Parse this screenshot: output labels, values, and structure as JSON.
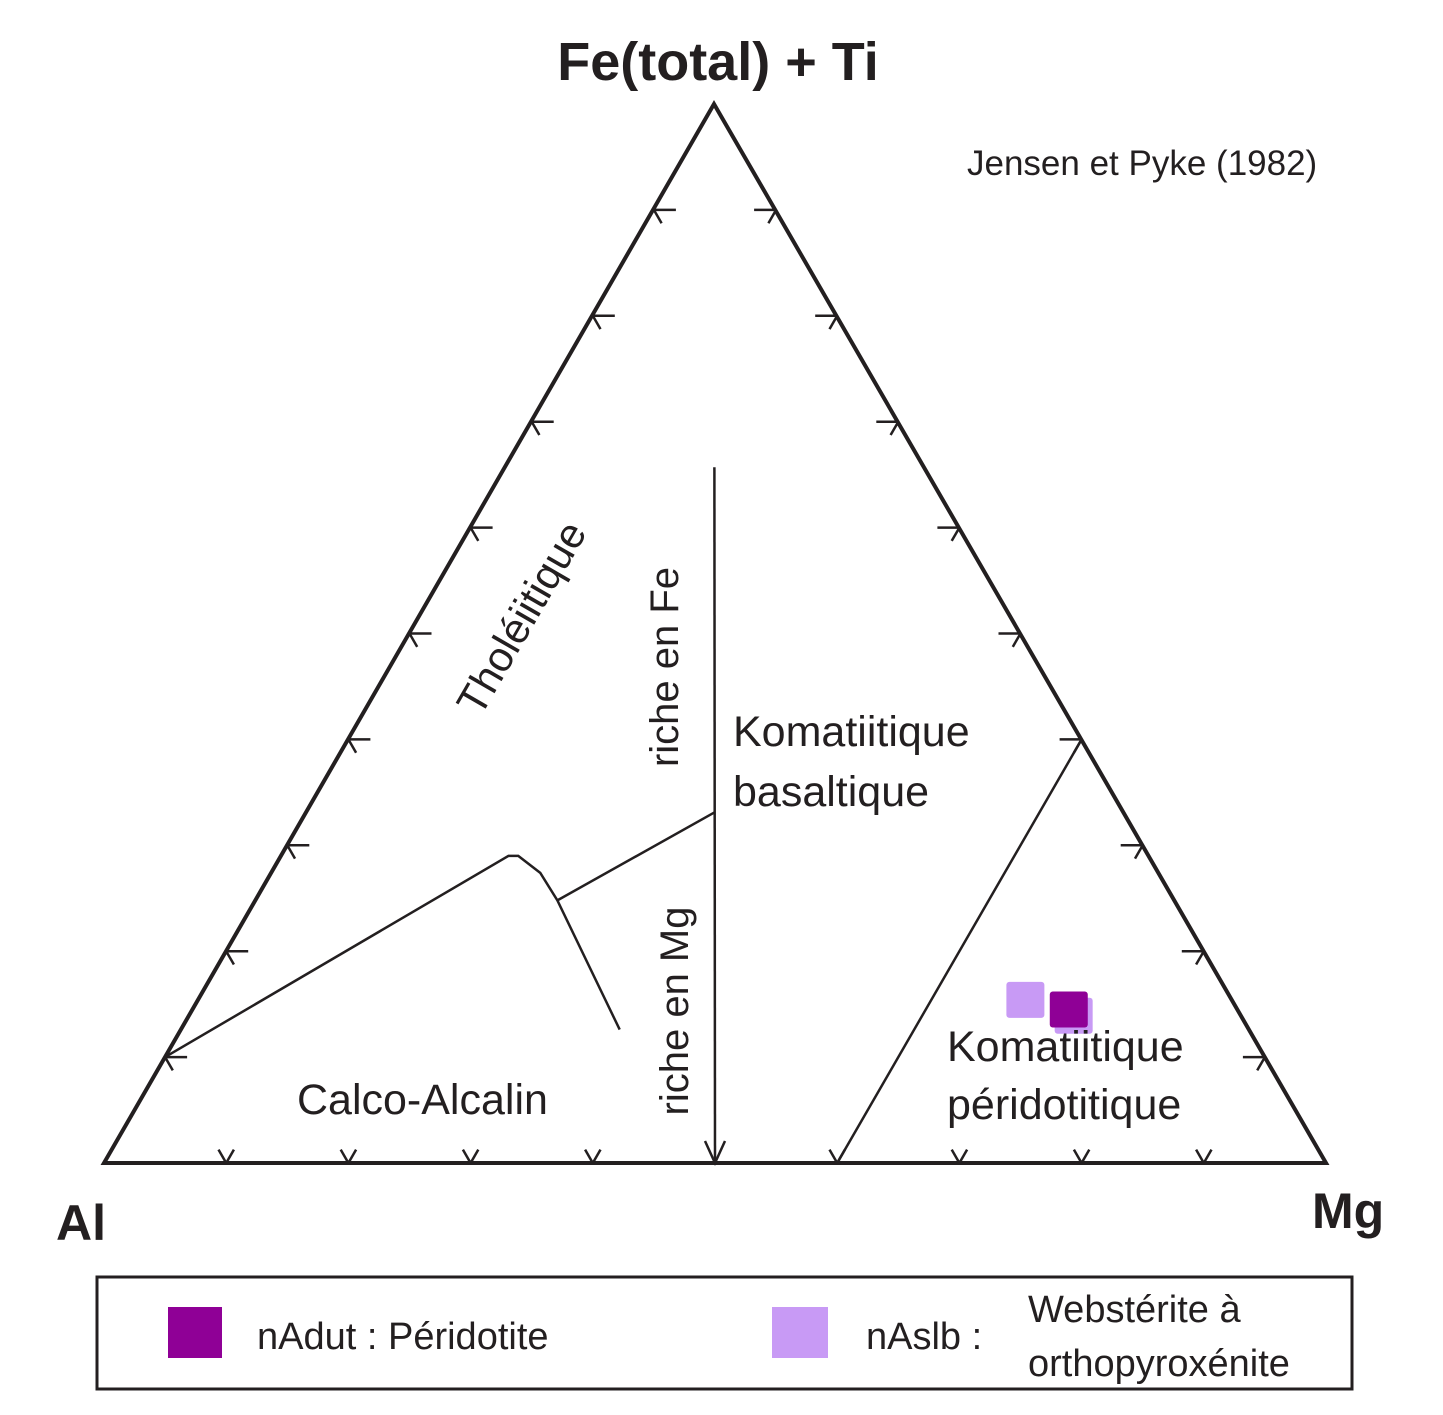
{
  "chart_data": {
    "type": "ternary",
    "title": "Fe(total) + Ti",
    "source": "Jensen et Pyke (1982)",
    "apices": {
      "top": "Fe(total) + Ti",
      "left": "Al",
      "right": "Mg"
    },
    "tick_step": 0.1,
    "fields": {
      "tholeiitic": "Tholéiitique",
      "fe_rich": "riche en Fe",
      "mg_rich": "riche en Mg",
      "komatiitic_basalt": [
        "Komatiitique",
        "basaltique"
      ],
      "calc_alkaline": "Calco-Alcalin",
      "komatiitic_peridotite": [
        "Komatiitique",
        "péridotitique"
      ]
    },
    "boundaries": [
      {
        "name": "fe-mg-divide",
        "points": [
          {
            "Al": 0.171,
            "Fe": 0.657,
            "Mg": 0.171
          },
          {
            "Al": 0.5,
            "Fe": 0.0,
            "Mg": 0.5
          }
        ]
      },
      {
        "name": "tholeiitic-calc-alkaline",
        "points": [
          {
            "Al": 0.9,
            "Fe": 0.1,
            "Mg": 0.0
          },
          {
            "Al": 0.524,
            "Fe": 0.29,
            "Mg": 0.186
          },
          {
            "Al": 0.516,
            "Fe": 0.29,
            "Mg": 0.194
          },
          {
            "Al": 0.506,
            "Fe": 0.274,
            "Mg": 0.22
          },
          {
            "Al": 0.505,
            "Fe": 0.248,
            "Mg": 0.247
          },
          {
            "Al": 0.515,
            "Fe": 0.126,
            "Mg": 0.359
          }
        ]
      },
      {
        "name": "tholeiitic-komatiitic",
        "points": [
          {
            "Al": 0.505,
            "Fe": 0.248,
            "Mg": 0.247
          },
          {
            "Al": 0.334,
            "Fe": 0.331,
            "Mg": 0.334
          }
        ]
      },
      {
        "name": "komatiitic-peridotite",
        "points": [
          {
            "Al": 0.4,
            "Fe": 0.0,
            "Mg": 0.6
          },
          {
            "Al": 0.0,
            "Fe": 0.4,
            "Mg": 0.6
          }
        ]
      }
    ],
    "series": [
      {
        "name": "nAslb",
        "label": "nAslb :",
        "description": [
          "Webstérite à",
          "orthopyroxénite"
        ],
        "color": "#c89af5",
        "points": [
          {
            "Al": 0.169,
            "Fe": 0.154,
            "Mg": 0.677
          },
          {
            "Al": 0.137,
            "Fe": 0.139,
            "Mg": 0.724
          }
        ]
      },
      {
        "name": "nAdut",
        "label": "nAdut : Péridotite",
        "color": "#8f0096",
        "points": [
          {
            "Al": 0.138,
            "Fe": 0.145,
            "Mg": 0.717
          }
        ]
      }
    ],
    "legend_position": "bottom"
  }
}
